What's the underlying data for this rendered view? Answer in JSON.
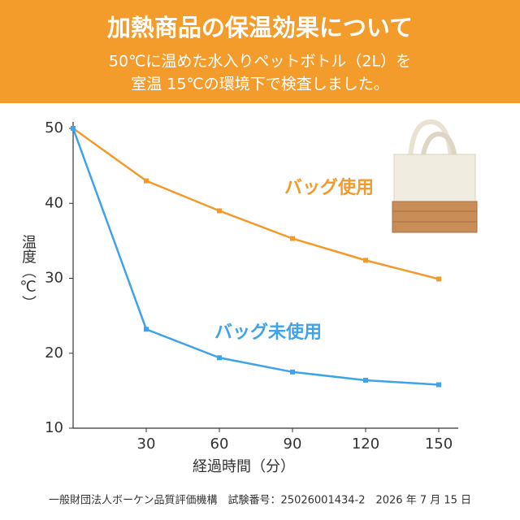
{
  "chart_data": {
    "type": "line",
    "title": "加熱商品の保温効果について",
    "subtitle": [
      "50℃に温めた水入りペットボトル（2L）を",
      "室温 15℃の環境下で検査しました。"
    ],
    "x_label": "経過時間（分）",
    "y_label": "温度（℃）",
    "x": [
      0,
      30,
      60,
      90,
      120,
      150
    ],
    "series": [
      {
        "name": "バッグ使用",
        "color": "#f39a2b",
        "values": [
          50,
          43,
          39,
          35.3,
          32.4,
          29.9
        ]
      },
      {
        "name": "バッグ未使用",
        "color": "#3ea3e8",
        "values": [
          50,
          23.2,
          19.4,
          17.5,
          16.4,
          15.8
        ]
      }
    ],
    "xlim": [
      0,
      158
    ],
    "xticks": [
      30,
      60,
      90,
      120,
      150
    ],
    "ylim": [
      10,
      50
    ],
    "yticks": [
      10,
      20,
      30,
      40,
      50
    ],
    "footnote": "一般財団法人ボーケン品質評価機構　試験番号：25026001434-2　2026 年 7 月 15 日"
  }
}
